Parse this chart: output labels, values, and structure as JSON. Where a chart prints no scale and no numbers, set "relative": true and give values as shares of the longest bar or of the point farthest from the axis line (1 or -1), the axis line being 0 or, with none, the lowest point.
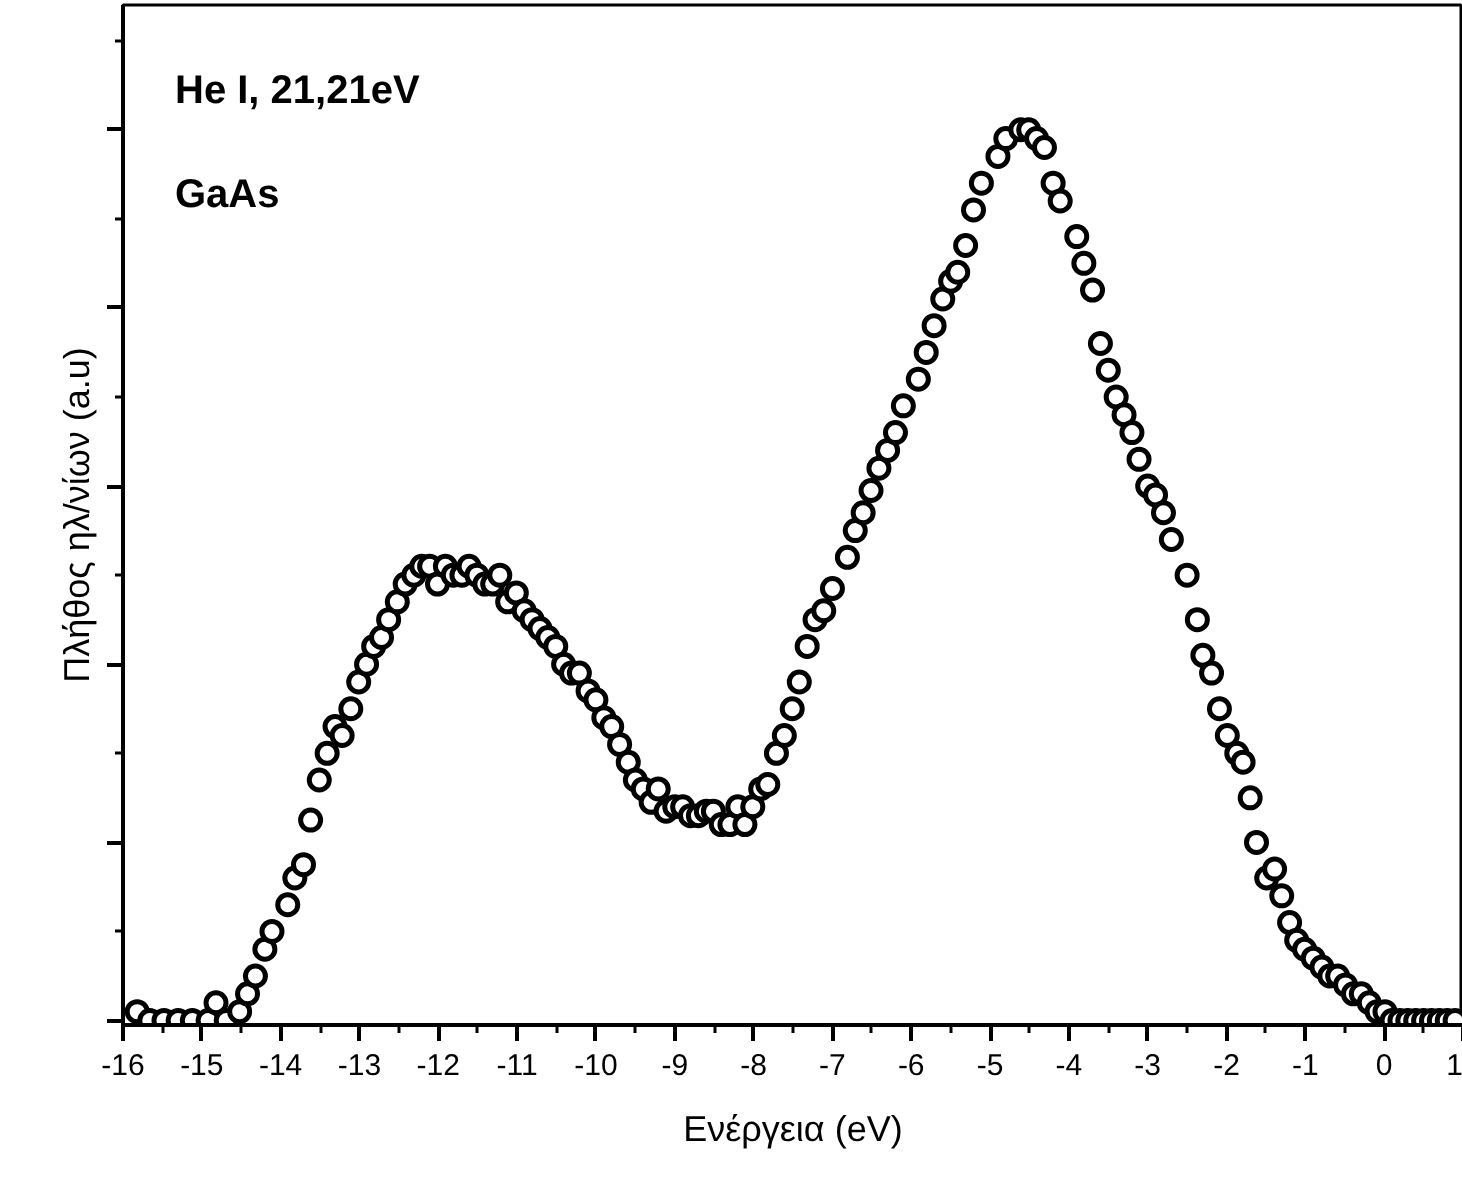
{
  "chart_data": {
    "type": "scatter",
    "xlabel": "Ενέργεια (eV)",
    "ylabel": "Πλήθος ηλ/νίων (a.u)",
    "annotations": [
      "He I, 21,21eV",
      "GaAs"
    ],
    "relative": true,
    "marker": "circle",
    "color": "#000000",
    "grid": false,
    "tick_labels": "x",
    "xlim": [
      -16,
      1
    ],
    "xticks": [
      -16,
      -15,
      -14,
      -13,
      -12,
      -11,
      -10,
      -9,
      -8,
      -7,
      -6,
      -5,
      -4,
      -3,
      -2,
      -1,
      0,
      1
    ],
    "x": [
      -15.82,
      -15.66,
      -15.48,
      -15.3,
      -15.12,
      -14.92,
      -14.82,
      -14.69,
      -14.52,
      -14.42,
      -14.32,
      -14.2,
      -14.11,
      -13.91,
      -13.82,
      -13.71,
      -13.62,
      -13.51,
      -13.41,
      -13.31,
      -13.22,
      -13.11,
      -13.01,
      -12.91,
      -12.82,
      -12.72,
      -12.63,
      -12.52,
      -12.42,
      -12.31,
      -12.21,
      -12.11,
      -12.01,
      -11.91,
      -11.81,
      -11.7,
      -11.61,
      -11.51,
      -11.41,
      -11.31,
      -11.22,
      -11.12,
      -11.01,
      -10.91,
      -10.81,
      -10.71,
      -10.61,
      -10.51,
      -10.41,
      -10.31,
      -10.21,
      -10.1,
      -10.0,
      -9.9,
      -9.8,
      -9.7,
      -9.59,
      -9.5,
      -9.4,
      -9.3,
      -9.21,
      -9.11,
      -9.0,
      -8.9,
      -8.8,
      -8.7,
      -8.6,
      -8.51,
      -8.41,
      -8.3,
      -8.2,
      -8.11,
      -8.01,
      -7.91,
      -7.82,
      -7.71,
      -7.61,
      -7.51,
      -7.42,
      -7.32,
      -7.22,
      -7.11,
      -7.0,
      -6.81,
      -6.71,
      -6.61,
      -6.51,
      -6.41,
      -6.3,
      -6.2,
      -6.1,
      -5.91,
      -5.81,
      -5.71,
      -5.6,
      -5.5,
      -5.41,
      -5.31,
      -5.21,
      -5.11,
      -4.9,
      -4.8,
      -4.61,
      -4.51,
      -4.41,
      -4.31,
      -4.2,
      -4.11,
      -3.9,
      -3.81,
      -3.7,
      -3.6,
      -3.5,
      -3.4,
      -3.3,
      -3.2,
      -3.11,
      -3.0,
      -2.9,
      -2.8,
      -2.7,
      -2.5,
      -2.37,
      -2.3,
      -2.19,
      -2.09,
      -1.99,
      -1.87,
      -1.79,
      -1.7,
      -1.62,
      -1.49,
      -1.39,
      -1.3,
      -1.2,
      -1.11,
      -1.01,
      -0.9,
      -0.79,
      -0.69,
      -0.59,
      -0.49,
      -0.39,
      -0.29,
      -0.19,
      -0.09,
      0.01,
      0.1,
      0.2,
      0.3,
      0.4,
      0.5,
      0.6,
      0.7,
      0.8,
      0.9
    ],
    "values": [
      0.01,
      0.0,
      0.0,
      0.0,
      0.0,
      0.0,
      0.02,
      0.0,
      0.01,
      0.03,
      0.05,
      0.08,
      0.1,
      0.13,
      0.16,
      0.175,
      0.225,
      0.27,
      0.3,
      0.33,
      0.32,
      0.35,
      0.38,
      0.4,
      0.42,
      0.43,
      0.45,
      0.47,
      0.49,
      0.5,
      0.51,
      0.51,
      0.49,
      0.51,
      0.5,
      0.5,
      0.51,
      0.5,
      0.49,
      0.49,
      0.5,
      0.47,
      0.48,
      0.46,
      0.45,
      0.44,
      0.43,
      0.42,
      0.4,
      0.39,
      0.39,
      0.37,
      0.36,
      0.34,
      0.33,
      0.31,
      0.29,
      0.27,
      0.26,
      0.245,
      0.26,
      0.235,
      0.24,
      0.24,
      0.23,
      0.23,
      0.235,
      0.235,
      0.22,
      0.22,
      0.24,
      0.22,
      0.24,
      0.26,
      0.265,
      0.3,
      0.32,
      0.35,
      0.38,
      0.42,
      0.45,
      0.46,
      0.485,
      0.52,
      0.55,
      0.57,
      0.595,
      0.62,
      0.64,
      0.66,
      0.69,
      0.72,
      0.75,
      0.78,
      0.81,
      0.83,
      0.84,
      0.87,
      0.91,
      0.94,
      0.97,
      0.99,
      1.0,
      1.0,
      0.99,
      0.98,
      0.94,
      0.92,
      0.88,
      0.85,
      0.82,
      0.76,
      0.73,
      0.7,
      0.68,
      0.66,
      0.63,
      0.6,
      0.59,
      0.57,
      0.54,
      0.5,
      0.45,
      0.41,
      0.39,
      0.35,
      0.32,
      0.3,
      0.29,
      0.25,
      0.2,
      0.16,
      0.17,
      0.14,
      0.11,
      0.09,
      0.08,
      0.07,
      0.06,
      0.05,
      0.05,
      0.04,
      0.03,
      0.03,
      0.02,
      0.01,
      0.01,
      0.0,
      0.0,
      0.0,
      0.0,
      0.0,
      0.0,
      0.0,
      0.0,
      0.0
    ]
  }
}
